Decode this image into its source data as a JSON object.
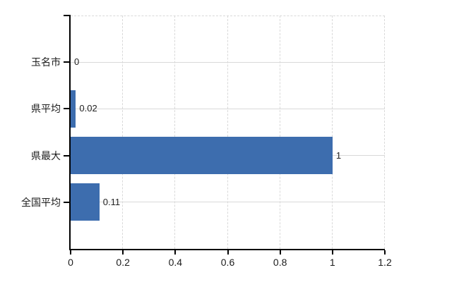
{
  "chart_data": {
    "type": "bar",
    "orientation": "horizontal",
    "title": "",
    "categories": [
      "玉名市",
      "県平均",
      "県最大",
      "全国平均"
    ],
    "values": [
      0,
      0.02,
      1,
      0.11
    ],
    "value_labels": [
      "0",
      "0.02",
      "1",
      "0.11"
    ],
    "x_ticks": [
      0,
      0.2,
      0.4,
      0.6,
      0.8,
      1,
      1.2
    ],
    "x_tick_labels": [
      "0",
      "0.2",
      "0.4",
      "0.6",
      "0.8",
      "1",
      "1.2"
    ],
    "xlim": [
      0,
      1.2
    ],
    "grid": true,
    "gridline_style": {
      "horizontal": "solid",
      "vertical": "dashed",
      "top_border": "dashed"
    },
    "colors": {
      "bar": "#3d6dae",
      "grid": "#d9d9d9",
      "axis": "#000000",
      "text": "#1c1c1c",
      "background": "#ffffff"
    }
  }
}
